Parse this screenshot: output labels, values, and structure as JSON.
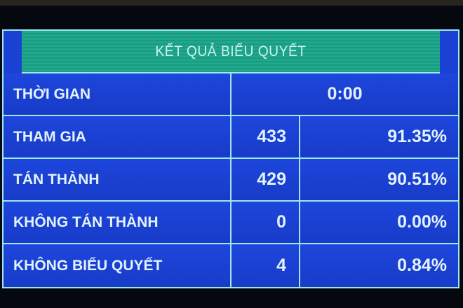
{
  "title": "KẾT QUẢ BIỂU QUYẾT",
  "time": {
    "label": "THỜI GIAN",
    "value": "0:00"
  },
  "rows": [
    {
      "label": "THAM GIA",
      "count": "433",
      "percent": "91.35%"
    },
    {
      "label": "TÁN THÀNH",
      "count": "429",
      "percent": "90.51%"
    },
    {
      "label": "KHÔNG TÁN THÀNH",
      "count": "0",
      "percent": "0.00%"
    },
    {
      "label": "KHÔNG BIỂU QUYẾT",
      "count": "4",
      "percent": "0.84%"
    }
  ],
  "colors": {
    "header": "#1fa88c",
    "rows": "#1a40d4",
    "border": "#9fe8f0"
  }
}
